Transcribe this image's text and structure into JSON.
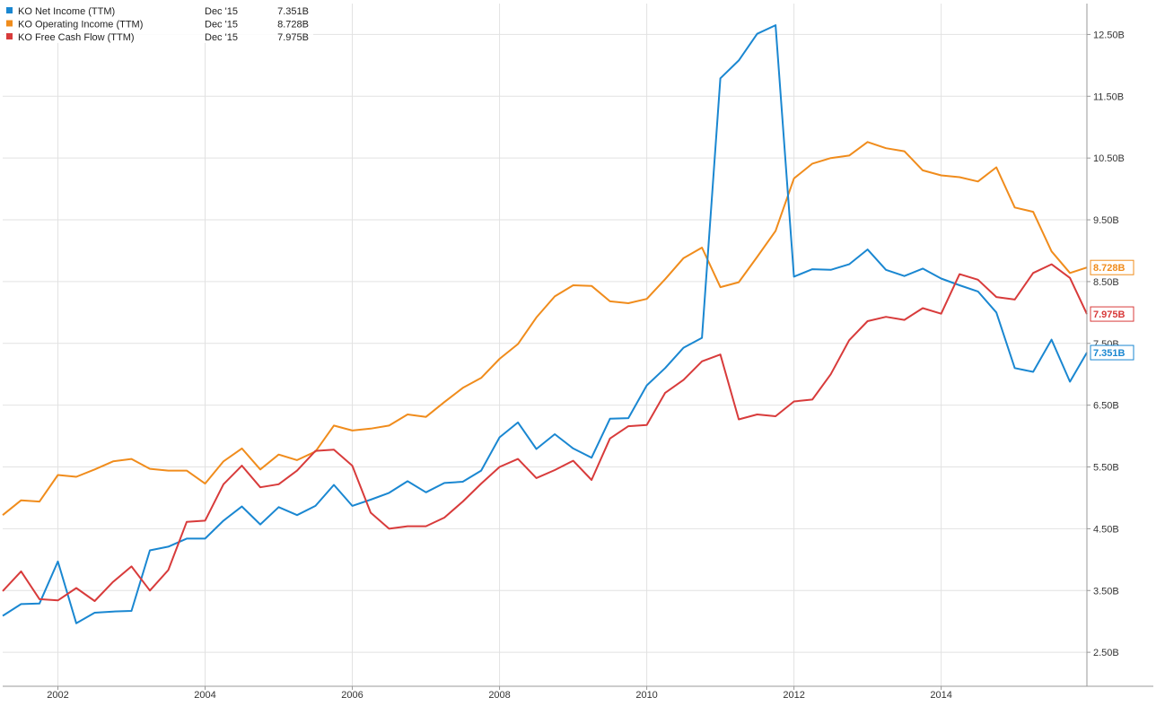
{
  "chart_data": {
    "type": "line",
    "x_unit": "year",
    "y_unit": "billions USD",
    "x_ticks": [
      2002,
      2004,
      2006,
      2008,
      2010,
      2012,
      2014
    ],
    "x_tick_labels": [
      "2002",
      "2004",
      "2006",
      "2008",
      "2010",
      "2012",
      "2014"
    ],
    "y_ticks": [
      2.5,
      3.5,
      4.5,
      5.5,
      6.5,
      7.5,
      8.5,
      9.5,
      10.5,
      11.5,
      12.5
    ],
    "y_tick_labels": [
      "2.50B",
      "3.50B",
      "4.50B",
      "5.50B",
      "6.50B",
      "7.50B",
      "8.50B",
      "9.50B",
      "10.50B",
      "11.50B",
      "12.50B"
    ],
    "xlim": [
      2001.25,
      2015.98
    ],
    "ylim": [
      1.95,
      13.0
    ],
    "grid": true,
    "legend_position": "top-left",
    "x": [
      2001.25,
      2001.5,
      2001.75,
      2002.0,
      2002.25,
      2002.5,
      2002.75,
      2003.0,
      2003.25,
      2003.5,
      2003.75,
      2004.0,
      2004.25,
      2004.5,
      2004.75,
      2005.0,
      2005.25,
      2005.5,
      2005.75,
      2006.0,
      2006.25,
      2006.5,
      2006.75,
      2007.0,
      2007.25,
      2007.5,
      2007.75,
      2008.0,
      2008.25,
      2008.5,
      2008.75,
      2009.0,
      2009.25,
      2009.5,
      2009.75,
      2010.0,
      2010.25,
      2010.5,
      2010.75,
      2011.0,
      2011.25,
      2011.5,
      2011.75,
      2012.0,
      2012.25,
      2012.5,
      2012.75,
      2013.0,
      2013.25,
      2013.5,
      2013.75,
      2014.0,
      2014.25,
      2014.5,
      2014.75,
      2015.0,
      2015.25,
      2015.5,
      2015.75,
      2015.98
    ],
    "series": [
      {
        "name": "KO Net Income (TTM)",
        "color": "#1a87d1",
        "legend_date": "Dec '15",
        "legend_value": "7.351B",
        "end_label": "7.351B",
        "values": [
          3.09,
          3.28,
          3.29,
          3.97,
          2.97,
          3.14,
          3.16,
          3.17,
          4.15,
          4.21,
          4.34,
          4.34,
          4.63,
          4.86,
          4.57,
          4.85,
          4.72,
          4.87,
          5.21,
          4.87,
          4.97,
          5.08,
          5.27,
          5.09,
          5.24,
          5.26,
          5.44,
          5.98,
          6.22,
          5.79,
          6.03,
          5.8,
          5.65,
          6.28,
          6.29,
          6.82,
          7.1,
          7.43,
          7.59,
          11.79,
          12.08,
          12.51,
          12.65,
          8.58,
          8.7,
          8.69,
          8.78,
          9.02,
          8.69,
          8.59,
          8.71,
          8.55,
          8.44,
          8.34,
          8.0,
          7.1,
          7.04,
          7.56,
          6.88,
          7.351
        ]
      },
      {
        "name": "KO Operating Income (TTM)",
        "color": "#f08c1c",
        "legend_date": "Dec '15",
        "legend_value": "8.728B",
        "end_label": "8.728B",
        "values": [
          4.72,
          4.96,
          4.94,
          5.37,
          5.34,
          5.46,
          5.59,
          5.63,
          5.47,
          5.44,
          5.44,
          5.23,
          5.59,
          5.8,
          5.46,
          5.7,
          5.61,
          5.75,
          6.17,
          6.09,
          6.12,
          6.17,
          6.35,
          6.31,
          6.55,
          6.78,
          6.94,
          7.25,
          7.49,
          7.92,
          8.26,
          8.44,
          8.43,
          8.18,
          8.15,
          8.22,
          8.54,
          8.88,
          9.05,
          8.41,
          8.49,
          8.9,
          9.32,
          10.17,
          10.41,
          10.5,
          10.54,
          10.76,
          10.66,
          10.61,
          10.3,
          10.22,
          10.19,
          10.12,
          10.35,
          9.7,
          9.63,
          8.99,
          8.64,
          8.728
        ]
      },
      {
        "name": "KO Free Cash Flow (TTM)",
        "color": "#d83b3b",
        "legend_date": "Dec '15",
        "legend_value": "7.975B",
        "end_label": "7.975B",
        "values": [
          3.49,
          3.81,
          3.36,
          3.34,
          3.54,
          3.33,
          3.64,
          3.89,
          3.5,
          3.83,
          4.61,
          4.63,
          5.22,
          5.52,
          5.17,
          5.22,
          5.44,
          5.76,
          5.78,
          5.52,
          4.76,
          4.5,
          4.54,
          4.54,
          4.68,
          4.94,
          5.23,
          5.5,
          5.63,
          5.32,
          5.45,
          5.6,
          5.29,
          5.96,
          6.16,
          6.18,
          6.7,
          6.91,
          7.21,
          7.32,
          6.27,
          6.35,
          6.32,
          6.56,
          6.59,
          7.0,
          7.55,
          7.86,
          7.93,
          7.88,
          8.07,
          7.98,
          8.62,
          8.53,
          8.25,
          8.21,
          8.64,
          8.78,
          8.56,
          7.975
        ]
      }
    ]
  }
}
